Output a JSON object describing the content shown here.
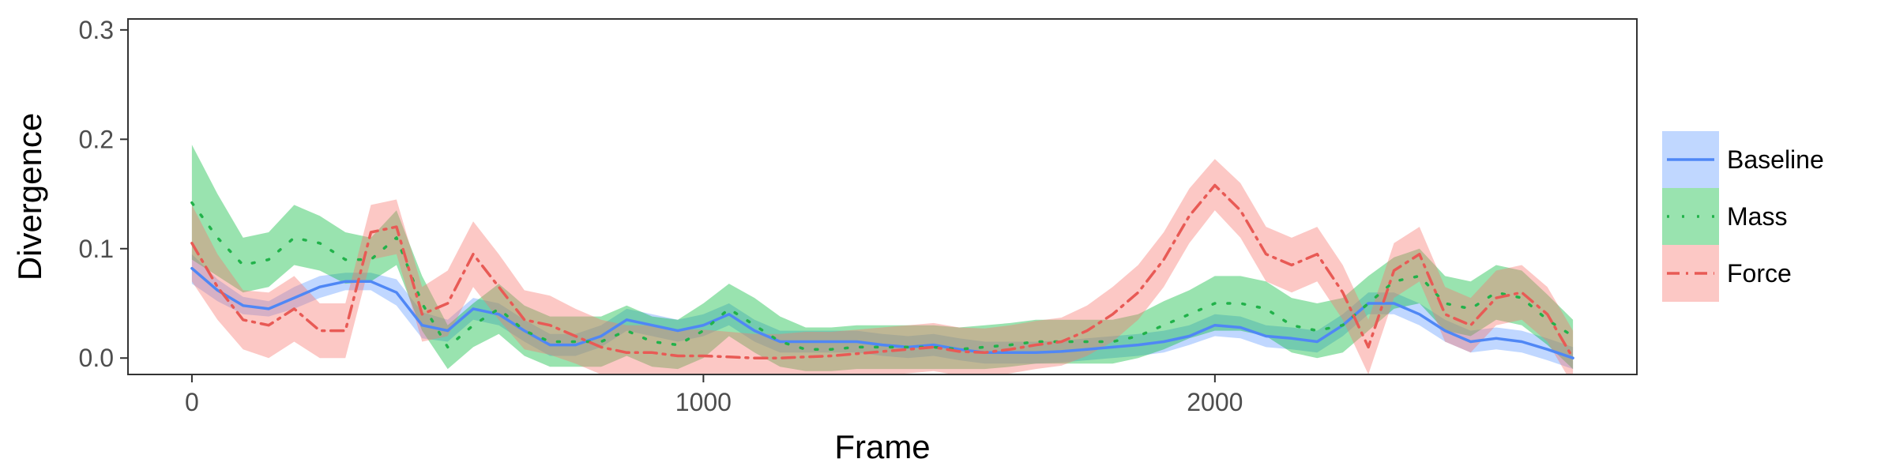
{
  "chart_data": {
    "type": "line",
    "xlabel": "Frame",
    "ylabel": "Divergence",
    "xlim": [
      -125,
      2825
    ],
    "ylim": [
      -0.015,
      0.31
    ],
    "x_ticks": [
      0,
      1000,
      2000
    ],
    "x_tick_labels": [
      "0",
      "1000",
      "2000"
    ],
    "y_ticks": [
      0,
      0.1,
      0.2,
      0.3
    ],
    "y_tick_labels": [
      "0.0",
      "0.1",
      "0.2",
      "0.3"
    ],
    "grid": false,
    "legend_position": "right",
    "x": [
      0,
      50,
      100,
      150,
      200,
      250,
      300,
      350,
      400,
      450,
      500,
      550,
      600,
      650,
      700,
      750,
      800,
      850,
      900,
      950,
      1000,
      1050,
      1100,
      1150,
      1200,
      1250,
      1300,
      1350,
      1400,
      1450,
      1500,
      1550,
      1600,
      1650,
      1700,
      1750,
      1800,
      1850,
      1900,
      1950,
      2000,
      2050,
      2100,
      2150,
      2200,
      2250,
      2300,
      2350,
      2400,
      2450,
      2500,
      2550,
      2600,
      2650,
      2700
    ],
    "series": [
      {
        "name": "Baseline",
        "color": "#619CFF",
        "line_color": "#4F87F5",
        "dash": "",
        "y": [
          0.082,
          0.062,
          0.048,
          0.045,
          0.055,
          0.065,
          0.07,
          0.07,
          0.06,
          0.03,
          0.025,
          0.045,
          0.04,
          0.025,
          0.012,
          0.012,
          0.02,
          0.035,
          0.03,
          0.025,
          0.03,
          0.04,
          0.025,
          0.015,
          0.015,
          0.015,
          0.015,
          0.012,
          0.01,
          0.012,
          0.008,
          0.005,
          0.005,
          0.005,
          0.006,
          0.008,
          0.01,
          0.012,
          0.015,
          0.02,
          0.03,
          0.028,
          0.02,
          0.018,
          0.015,
          0.03,
          0.05,
          0.05,
          0.04,
          0.025,
          0.015,
          0.018,
          0.015,
          0.008,
          0.0
        ],
        "lower": [
          0.068,
          0.052,
          0.04,
          0.038,
          0.045,
          0.055,
          0.062,
          0.062,
          0.048,
          0.018,
          0.015,
          0.035,
          0.03,
          0.015,
          0.002,
          0.002,
          0.01,
          0.025,
          0.02,
          0.015,
          0.02,
          0.03,
          0.015,
          0.005,
          0.005,
          0.005,
          0.005,
          0.002,
          0.0,
          0.002,
          -0.002,
          -0.005,
          -0.005,
          -0.005,
          -0.004,
          -0.002,
          0.0,
          0.002,
          0.005,
          0.012,
          0.02,
          0.018,
          0.01,
          0.008,
          0.005,
          0.02,
          0.04,
          0.04,
          0.03,
          0.015,
          0.005,
          0.008,
          0.005,
          -0.002,
          -0.01
        ],
        "upper": [
          0.095,
          0.072,
          0.056,
          0.052,
          0.065,
          0.075,
          0.078,
          0.078,
          0.072,
          0.042,
          0.035,
          0.055,
          0.05,
          0.035,
          0.022,
          0.022,
          0.03,
          0.045,
          0.04,
          0.035,
          0.04,
          0.05,
          0.035,
          0.025,
          0.025,
          0.025,
          0.025,
          0.022,
          0.02,
          0.022,
          0.018,
          0.015,
          0.015,
          0.015,
          0.016,
          0.018,
          0.02,
          0.022,
          0.025,
          0.03,
          0.04,
          0.038,
          0.03,
          0.028,
          0.025,
          0.04,
          0.06,
          0.06,
          0.05,
          0.035,
          0.025,
          0.028,
          0.025,
          0.018,
          0.01
        ]
      },
      {
        "name": "Mass",
        "color": "#00BA38",
        "line_color": "#21B24A",
        "dash": "3 16",
        "y": [
          0.142,
          0.11,
          0.085,
          0.09,
          0.11,
          0.105,
          0.09,
          0.09,
          0.11,
          0.05,
          0.01,
          0.03,
          0.045,
          0.025,
          0.015,
          0.015,
          0.015,
          0.025,
          0.015,
          0.012,
          0.025,
          0.045,
          0.03,
          0.015,
          0.008,
          0.008,
          0.01,
          0.01,
          0.01,
          0.01,
          0.008,
          0.01,
          0.012,
          0.015,
          0.015,
          0.015,
          0.015,
          0.02,
          0.03,
          0.04,
          0.05,
          0.05,
          0.045,
          0.03,
          0.025,
          0.03,
          0.05,
          0.07,
          0.075,
          0.05,
          0.045,
          0.06,
          0.055,
          0.035,
          0.02
        ],
        "lower": [
          0.09,
          0.075,
          0.06,
          0.065,
          0.085,
          0.08,
          0.068,
          0.07,
          0.085,
          0.025,
          -0.01,
          0.01,
          0.022,
          0.002,
          -0.008,
          -0.008,
          -0.008,
          0.002,
          -0.008,
          -0.01,
          0.0,
          0.02,
          0.005,
          -0.008,
          -0.012,
          -0.012,
          -0.01,
          -0.01,
          -0.01,
          -0.01,
          -0.01,
          -0.01,
          -0.008,
          -0.005,
          -0.005,
          -0.005,
          -0.005,
          0.0,
          0.008,
          0.018,
          0.025,
          0.025,
          0.02,
          0.005,
          0.0,
          0.005,
          0.025,
          0.045,
          0.05,
          0.025,
          0.02,
          0.035,
          0.03,
          0.012,
          -0.01
        ],
        "upper": [
          0.195,
          0.15,
          0.11,
          0.115,
          0.14,
          0.13,
          0.115,
          0.11,
          0.135,
          0.075,
          0.03,
          0.05,
          0.068,
          0.048,
          0.038,
          0.038,
          0.038,
          0.048,
          0.038,
          0.035,
          0.05,
          0.068,
          0.055,
          0.038,
          0.028,
          0.028,
          0.03,
          0.03,
          0.03,
          0.03,
          0.028,
          0.03,
          0.032,
          0.035,
          0.035,
          0.035,
          0.035,
          0.04,
          0.052,
          0.062,
          0.075,
          0.075,
          0.07,
          0.055,
          0.05,
          0.055,
          0.075,
          0.092,
          0.1,
          0.075,
          0.07,
          0.085,
          0.08,
          0.058,
          0.035
        ]
      },
      {
        "name": "Force",
        "color": "#F8766D",
        "line_color": "#E85A55",
        "dash": "16 8 3 8",
        "y": [
          0.105,
          0.065,
          0.035,
          0.03,
          0.045,
          0.025,
          0.025,
          0.115,
          0.12,
          0.04,
          0.05,
          0.095,
          0.065,
          0.035,
          0.03,
          0.02,
          0.01,
          0.005,
          0.005,
          0.002,
          0.002,
          0.001,
          0.0,
          0.0,
          0.001,
          0.002,
          0.004,
          0.006,
          0.008,
          0.01,
          0.006,
          0.005,
          0.008,
          0.012,
          0.015,
          0.025,
          0.04,
          0.06,
          0.09,
          0.13,
          0.158,
          0.135,
          0.095,
          0.085,
          0.095,
          0.06,
          0.01,
          0.08,
          0.095,
          0.04,
          0.03,
          0.055,
          0.06,
          0.04,
          0.0
        ],
        "lower": [
          0.07,
          0.035,
          0.008,
          0.0,
          0.015,
          0.0,
          0.0,
          0.09,
          0.095,
          0.015,
          0.02,
          0.065,
          0.035,
          0.008,
          0.003,
          -0.005,
          -0.015,
          -0.02,
          -0.02,
          -0.022,
          -0.022,
          -0.022,
          -0.022,
          -0.022,
          -0.022,
          -0.02,
          -0.018,
          -0.016,
          -0.014,
          -0.012,
          -0.016,
          -0.017,
          -0.014,
          -0.01,
          -0.007,
          0.002,
          0.015,
          0.035,
          0.065,
          0.105,
          0.135,
          0.11,
          0.07,
          0.06,
          0.07,
          0.035,
          -0.015,
          0.055,
          0.07,
          0.015,
          0.005,
          0.03,
          0.035,
          0.015,
          -0.025
        ],
        "upper": [
          0.14,
          0.095,
          0.062,
          0.06,
          0.075,
          0.05,
          0.05,
          0.14,
          0.145,
          0.065,
          0.08,
          0.125,
          0.095,
          0.062,
          0.057,
          0.045,
          0.035,
          0.03,
          0.03,
          0.026,
          0.026,
          0.024,
          0.022,
          0.022,
          0.024,
          0.024,
          0.026,
          0.028,
          0.03,
          0.032,
          0.028,
          0.027,
          0.03,
          0.034,
          0.037,
          0.048,
          0.065,
          0.085,
          0.115,
          0.155,
          0.182,
          0.16,
          0.12,
          0.11,
          0.12,
          0.085,
          0.035,
          0.105,
          0.12,
          0.065,
          0.055,
          0.08,
          0.085,
          0.065,
          0.025
        ]
      }
    ]
  }
}
